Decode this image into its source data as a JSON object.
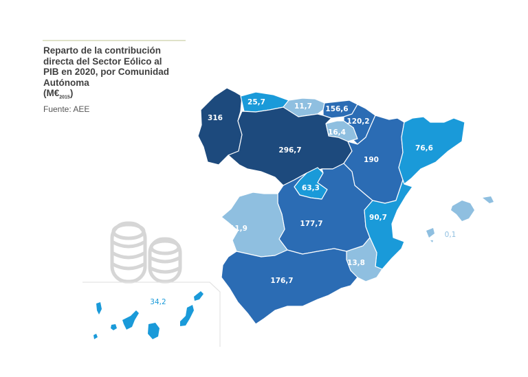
{
  "header": {
    "title_line1": "Reparto de la contribución",
    "title_line2": "directa del Sector Eólico al",
    "title_line3": "PIB en 2020, por Comunidad",
    "title_line4": "Autónoma",
    "unit_main": "(M€",
    "unit_sub": "2015",
    "unit_close": ")",
    "source": "Fuente: AEE"
  },
  "legend_colors": {
    "darkest": "#1d4a7d",
    "dark": "#2b6cb4",
    "medium": "#1a9ad9",
    "light": "#8fbfe0"
  },
  "regions": [
    {
      "value": "316",
      "color": "#1d4a7d"
    },
    {
      "value": "25,7",
      "color": "#1a9ad9"
    },
    {
      "value": "11,7",
      "color": "#8fbfe0"
    },
    {
      "value": "156,6",
      "color": "#2b6cb4"
    },
    {
      "value": "120,2",
      "color": "#2b6cb4"
    },
    {
      "value": "16,4",
      "color": "#8fbfe0"
    },
    {
      "value": "296,7",
      "color": "#1d4a7d"
    },
    {
      "value": "190",
      "color": "#2b6cb4"
    },
    {
      "value": "76,6",
      "color": "#1a9ad9"
    },
    {
      "value": "63,3",
      "color": "#1a9ad9"
    },
    {
      "value": "177,7",
      "color": "#2b6cb4"
    },
    {
      "value": "90,7",
      "color": "#1a9ad9"
    },
    {
      "value": "11,9",
      "color": "#8fbfe0"
    },
    {
      "value": "13,8",
      "color": "#8fbfe0"
    },
    {
      "value": "176,7",
      "color": "#2b6cb4"
    },
    {
      "value": "0,1",
      "color": "#8fbfe0"
    },
    {
      "value": "34,2",
      "color": "#1a9ad9"
    }
  ]
}
